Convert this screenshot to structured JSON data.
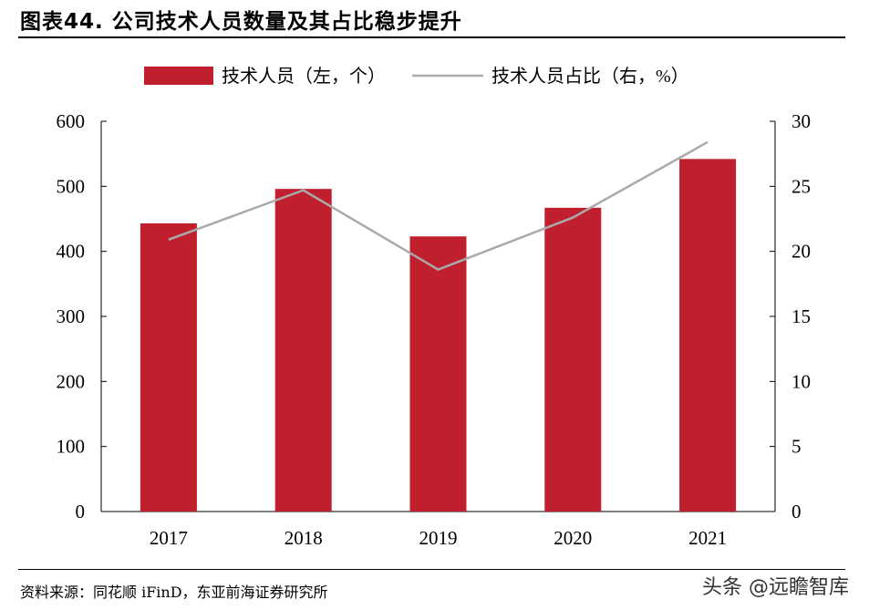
{
  "title": "图表44.  公司技术人员数量及其占比稳步提升",
  "source": "资料来源：同花顺 iFinD，东亚前海证券研究所",
  "watermark": "头条 @远瞻智库",
  "colors": {
    "bar": "#C0202E",
    "line": "#AAAAAA"
  },
  "chart_data": {
    "type": "bar",
    "categories": [
      "2017",
      "2018",
      "2019",
      "2020",
      "2021"
    ],
    "series": [
      {
        "name": "技术人员（左，个）",
        "type": "bar",
        "axis": "left",
        "values": [
          443,
          496,
          423,
          467,
          542
        ]
      },
      {
        "name": "技术人员占比（右，%）",
        "type": "line",
        "axis": "right",
        "values": [
          20.9,
          24.7,
          18.6,
          22.6,
          28.4
        ]
      }
    ],
    "ylim_left": [
      0,
      600
    ],
    "yticks_left": [
      "0",
      "100",
      "200",
      "300",
      "400",
      "500",
      "600"
    ],
    "ylim_right": [
      0,
      30
    ],
    "yticks_right": [
      "0",
      "5",
      "10",
      "15",
      "20",
      "25",
      "30"
    ],
    "legend_position": "top",
    "grid": false
  }
}
